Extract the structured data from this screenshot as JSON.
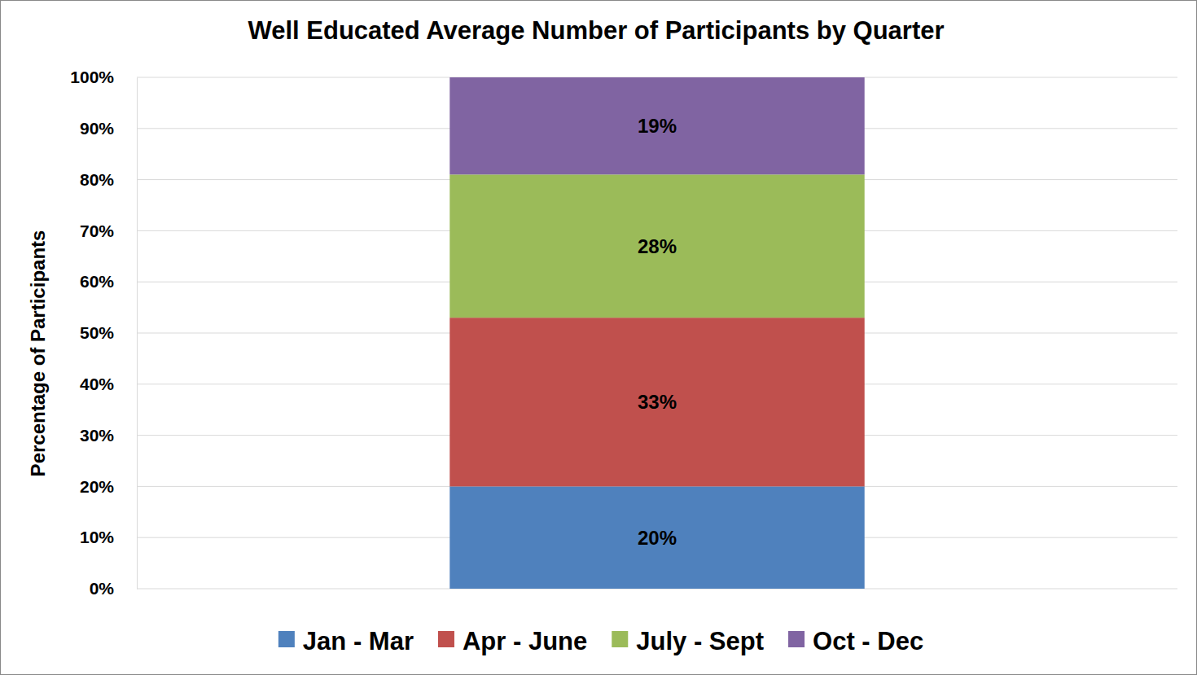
{
  "chart_data": {
    "type": "bar",
    "title": "Well Educated Average Number of Participants by Quarter",
    "y_label": "Percentage of Participants",
    "categories": [
      null
    ],
    "series": [
      {
        "name": "Jan - Mar",
        "color": "#4f81bd",
        "values": [
          20
        ],
        "value_labels": [
          "20%"
        ]
      },
      {
        "name": "Apr - June",
        "color": "#c0504d",
        "values": [
          33
        ],
        "value_labels": [
          "33%"
        ]
      },
      {
        "name": "July - Sept",
        "color": "#9bbb59",
        "values": [
          28
        ],
        "value_labels": [
          "28%"
        ]
      },
      {
        "name": "Oct - Dec",
        "color": "#8064a2",
        "values": [
          19
        ],
        "value_labels": [
          "19%"
        ]
      }
    ],
    "stacked": true,
    "data_labels": true,
    "grid": true,
    "legend": "bottom",
    "ylim": [
      0,
      100
    ],
    "yticks": [
      {
        "value": 0,
        "label": "0%"
      },
      {
        "value": 10,
        "label": "10%"
      },
      {
        "value": 20,
        "label": "20%"
      },
      {
        "value": 30,
        "label": "30%"
      },
      {
        "value": 40,
        "label": "40%"
      },
      {
        "value": 50,
        "label": "50%"
      },
      {
        "value": 60,
        "label": "60%"
      },
      {
        "value": 70,
        "label": "70%"
      },
      {
        "value": 80,
        "label": "80%"
      },
      {
        "value": 90,
        "label": "90%"
      },
      {
        "value": 100,
        "label": "100%"
      }
    ]
  }
}
